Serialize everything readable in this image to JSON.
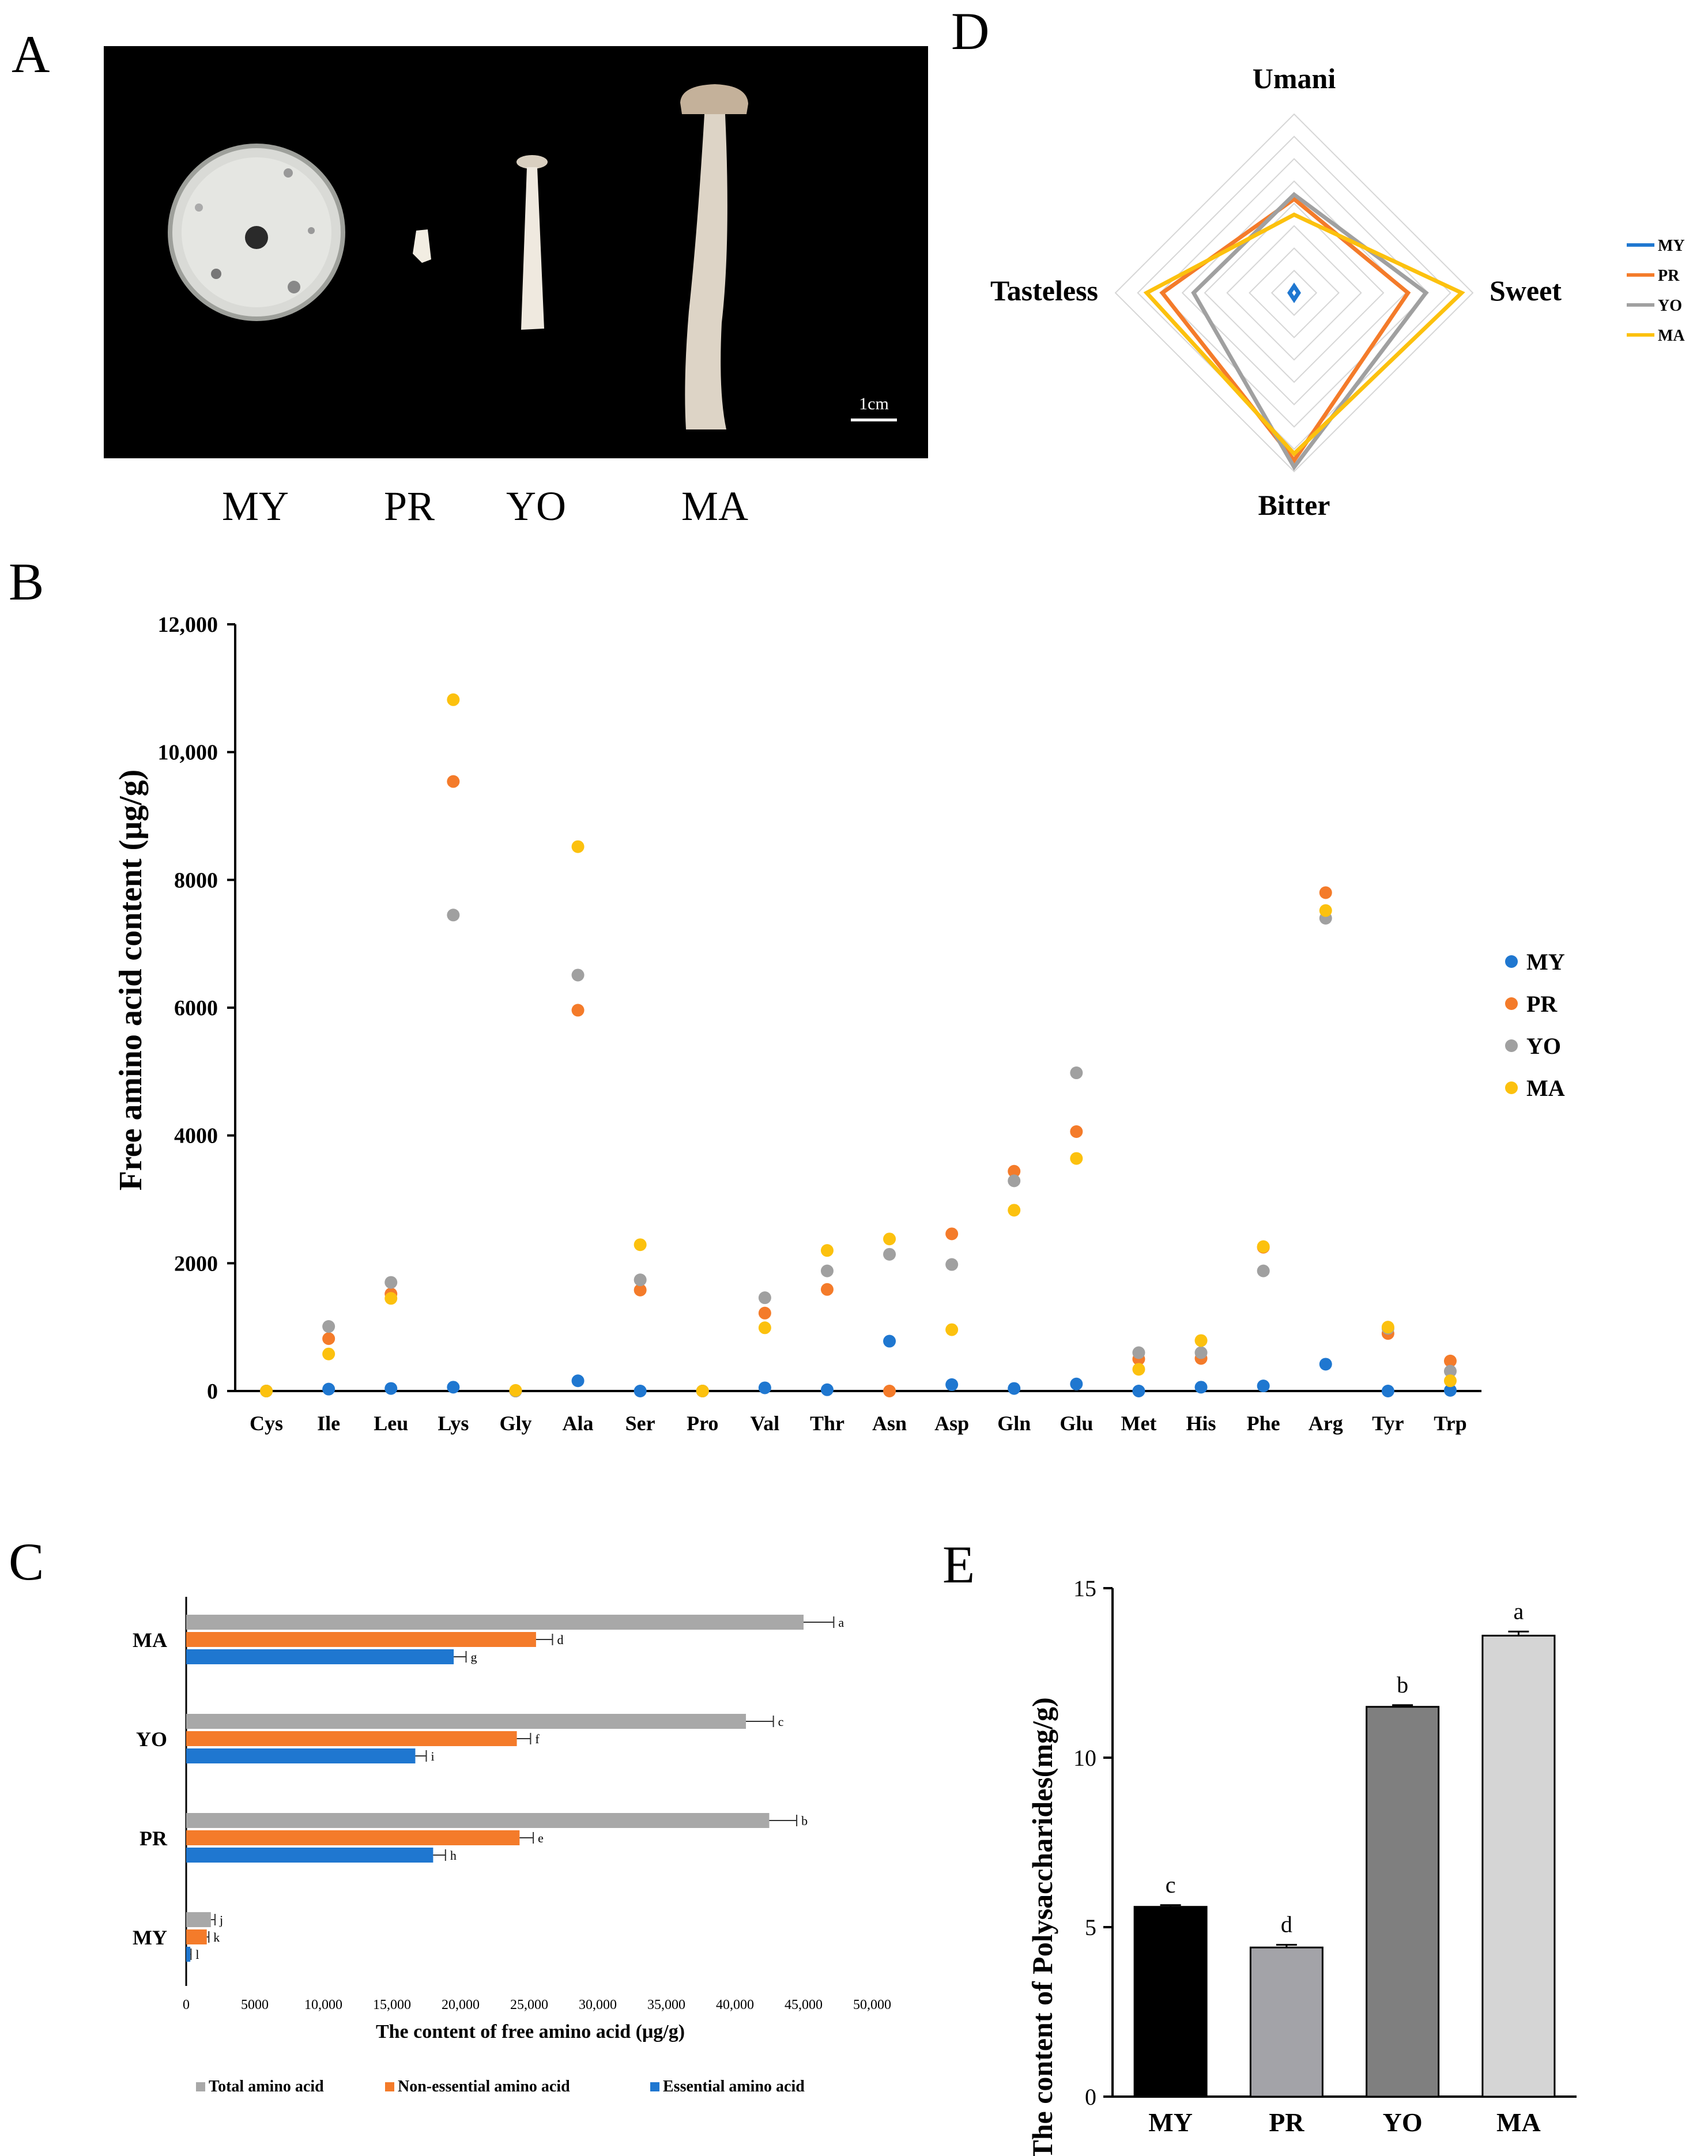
{
  "panel_labels": {
    "A": "A",
    "B": "B",
    "C": "C",
    "D": "D",
    "E": "E"
  },
  "colors": {
    "MY": "#1f77d0",
    "PR": "#f47b2a",
    "YO": "#a0a0a0",
    "MA": "#fcc10e",
    "total": "#a8a8a8",
    "nonessential": "#f47b2a",
    "essential": "#1f77d0"
  },
  "panel_a": {
    "labels": [
      "MY",
      "PR",
      "YO",
      "MA"
    ],
    "scale_label": "1cm"
  },
  "chart_data": [
    {
      "id": "B",
      "type": "scatter",
      "ylabel": "Free amino acid content (μg/g)",
      "yticks": [
        "0",
        "2000",
        "4000",
        "6000",
        "8000",
        "10,000",
        "12,000"
      ],
      "ylim": [
        0,
        12000
      ],
      "categories": [
        "Cys",
        "Ile",
        "Leu",
        "Lys",
        "Gly",
        "Ala",
        "Ser",
        "Pro",
        "Val",
        "Thr",
        "Asn",
        "Asp",
        "Gln",
        "Glu",
        "Met",
        "His",
        "Phe",
        "Arg",
        "Tyr",
        "Trp"
      ],
      "series": [
        {
          "name": "MY",
          "values": [
            0,
            30,
            40,
            60,
            0,
            160,
            0,
            0,
            50,
            20,
            780,
            100,
            40,
            110,
            0,
            60,
            80,
            420,
            0,
            10
          ]
        },
        {
          "name": "PR",
          "values": [
            0,
            820,
            1520,
            9540,
            0,
            5960,
            1580,
            0,
            1220,
            1590,
            0,
            2460,
            3440,
            4060,
            500,
            510,
            2250,
            7800,
            900,
            470
          ]
        },
        {
          "name": "YO",
          "values": [
            0,
            1010,
            1700,
            7450,
            0,
            6510,
            1740,
            0,
            1460,
            1880,
            2140,
            1980,
            3290,
            4980,
            600,
            600,
            1880,
            7400,
            980,
            310
          ]
        },
        {
          "name": "MA",
          "values": [
            0,
            580,
            1450,
            10820,
            10,
            8520,
            2290,
            0,
            990,
            2200,
            2380,
            960,
            2830,
            3640,
            340,
            790,
            2260,
            7520,
            1000,
            160
          ]
        }
      ],
      "legend": [
        "MY",
        "PR",
        "YO",
        "MA"
      ]
    },
    {
      "id": "C",
      "type": "bar",
      "orientation": "horizontal",
      "xlabel": "The content of free amino acid (μg/g)",
      "xticks": [
        "0",
        "5000",
        "10,000",
        "15,000",
        "20,000",
        "25,000",
        "30,000",
        "35,000",
        "40,000",
        "45,000",
        "50,000"
      ],
      "xlim": [
        0,
        50000
      ],
      "categories": [
        "MA",
        "YO",
        "PR",
        "MY"
      ],
      "series": [
        {
          "name": "Total amino acid",
          "values": [
            45000,
            40800,
            42500,
            1800
          ],
          "errors": [
            2200,
            2000,
            2000,
            300
          ],
          "letters": [
            "a",
            "c",
            "b",
            "j"
          ]
        },
        {
          "name": "Non-essential amino acid",
          "values": [
            25500,
            24100,
            24300,
            1500
          ],
          "errors": [
            1200,
            1000,
            1000,
            150
          ],
          "letters": [
            "d",
            "f",
            "e",
            "k"
          ]
        },
        {
          "name": "Essential amino acid",
          "values": [
            19500,
            16700,
            18000,
            300
          ],
          "errors": [
            900,
            800,
            900,
            50
          ],
          "letters": [
            "g",
            "i",
            "h",
            "l"
          ]
        }
      ]
    },
    {
      "id": "D",
      "type": "radar",
      "axes": [
        "Umani",
        "Sweet",
        "Bitter",
        "Tasteless"
      ],
      "rmax": 8,
      "rings": 8,
      "series": [
        {
          "name": "MY",
          "values": [
            0.3,
            0.2,
            0.3,
            0.2
          ]
        },
        {
          "name": "PR",
          "values": [
            4.2,
            5.1,
            7.5,
            5.9
          ]
        },
        {
          "name": "YO",
          "values": [
            4.4,
            5.9,
            7.8,
            4.5
          ]
        },
        {
          "name": "MA",
          "values": [
            3.5,
            7.5,
            7.2,
            6.6
          ]
        }
      ],
      "legend": [
        "MY",
        "PR",
        "YO",
        "MA"
      ]
    },
    {
      "id": "E",
      "type": "bar",
      "ylabel": "The content of Polysaccharides(mg/g)",
      "yticks": [
        "0",
        "5",
        "10",
        "15"
      ],
      "ylim": [
        0,
        15
      ],
      "categories": [
        "MY",
        "PR",
        "YO",
        "MA"
      ],
      "values": [
        5.6,
        4.4,
        11.5,
        13.6
      ],
      "errors": [
        0.05,
        0.08,
        0.05,
        0.12
      ],
      "letters": [
        "c",
        "d",
        "b",
        "a"
      ],
      "bar_colors": [
        "#000000",
        "#a3a3a8",
        "#7f7f7f",
        "#d5d5d5"
      ]
    }
  ]
}
